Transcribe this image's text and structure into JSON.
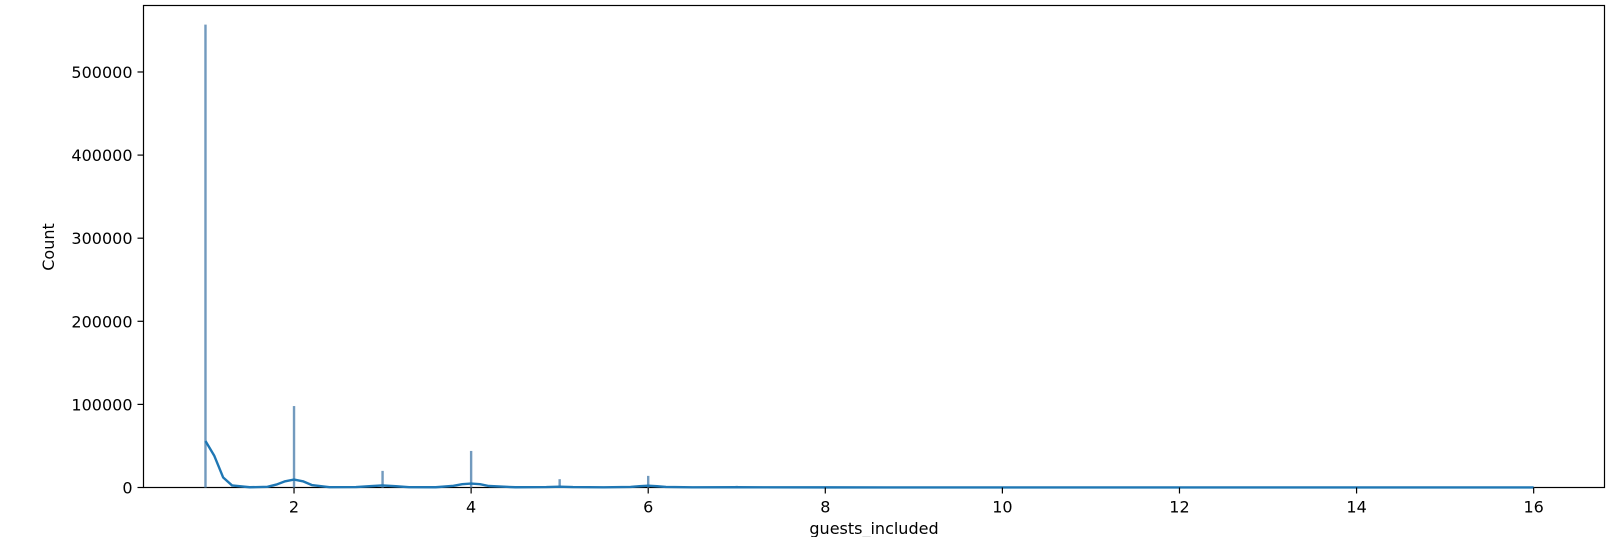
{
  "chart_data": {
    "type": "histogram",
    "title": "",
    "xlabel": "guests_included",
    "ylabel": "Count",
    "xlim": [
      0.3,
      16.8
    ],
    "ylim": [
      0,
      580000
    ],
    "xticks": [
      2,
      4,
      6,
      8,
      10,
      12,
      14,
      16
    ],
    "yticks": [
      0,
      100000,
      200000,
      300000,
      400000,
      500000
    ],
    "grid": false,
    "legend": "none",
    "bar_color": "#6a95ba",
    "kde_color": "#1f77b4",
    "bars": [
      {
        "x": 1,
        "count": 557000
      },
      {
        "x": 2,
        "count": 98000
      },
      {
        "x": 3,
        "count": 20000
      },
      {
        "x": 4,
        "count": 44000
      },
      {
        "x": 5,
        "count": 10000
      },
      {
        "x": 6,
        "count": 14000
      },
      {
        "x": 7,
        "count": 2000
      },
      {
        "x": 8,
        "count": 800
      },
      {
        "x": 9,
        "count": 300
      },
      {
        "x": 10,
        "count": 400
      },
      {
        "x": 11,
        "count": 100
      },
      {
        "x": 12,
        "count": 150
      },
      {
        "x": 13,
        "count": 50
      },
      {
        "x": 14,
        "count": 60
      },
      {
        "x": 15,
        "count": 30
      },
      {
        "x": 16,
        "count": 200
      }
    ],
    "kde": {
      "x": [
        1.0,
        1.1,
        1.15,
        1.2,
        1.3,
        1.5,
        1.7,
        1.8,
        1.9,
        2.0,
        2.1,
        2.2,
        2.4,
        2.7,
        2.85,
        3.0,
        3.15,
        3.3,
        3.6,
        3.8,
        3.9,
        4.0,
        4.1,
        4.2,
        4.5,
        4.85,
        5.0,
        5.15,
        5.5,
        5.8,
        5.9,
        6.0,
        6.1,
        6.2,
        6.5,
        7.0,
        8.0,
        10.0,
        12.0,
        14.0,
        16.0
      ],
      "y": [
        56000,
        38000,
        25000,
        12000,
        2500,
        300,
        800,
        3500,
        7500,
        9500,
        7500,
        3000,
        400,
        500,
        1500,
        2500,
        1500,
        400,
        300,
        2000,
        4000,
        4800,
        4000,
        1800,
        300,
        500,
        1000,
        500,
        200,
        700,
        1500,
        2200,
        1500,
        700,
        200,
        300,
        150,
        80,
        50,
        30,
        20
      ]
    }
  }
}
